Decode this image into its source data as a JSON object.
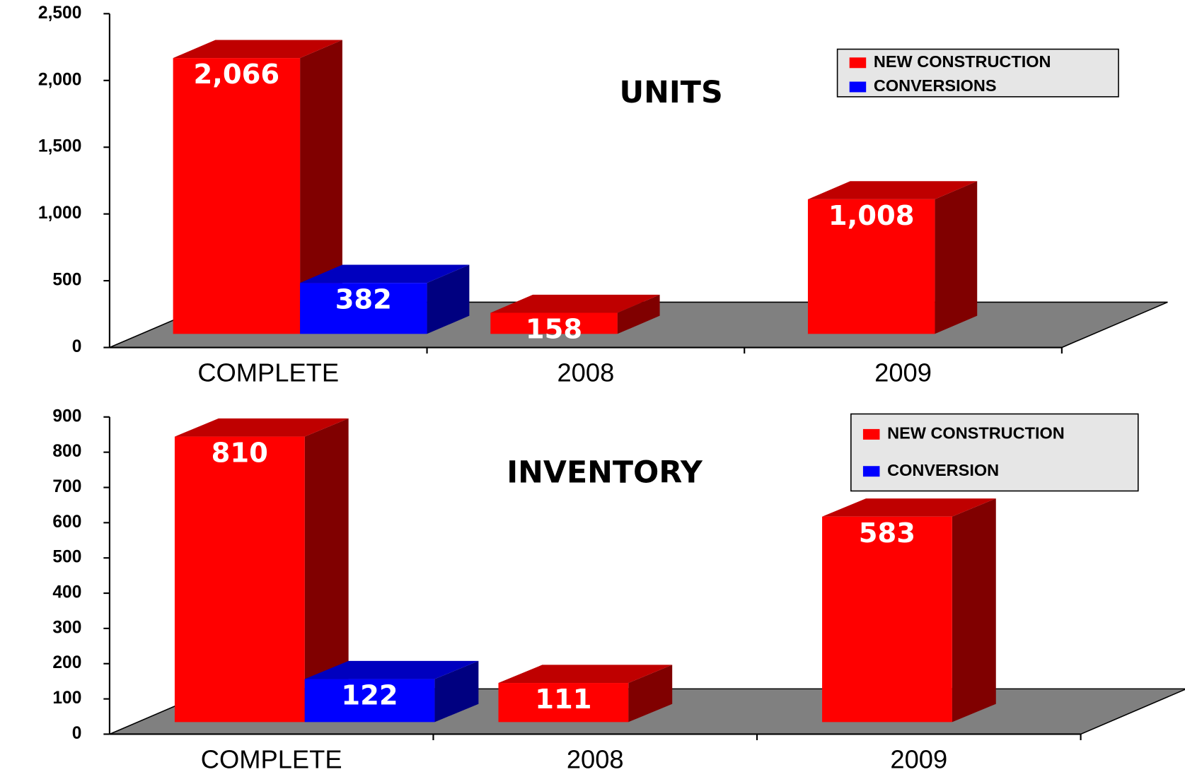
{
  "chart_data": [
    {
      "type": "bar3d",
      "title": "UNITS",
      "categories": [
        "COMPLETE",
        "2008",
        "2009"
      ],
      "series": [
        {
          "name": "NEW CONSTRUCTION",
          "color": "#ff0000",
          "values": [
            2066,
            158,
            1008
          ],
          "value_labels": [
            "2,066",
            "158",
            "1,008"
          ]
        },
        {
          "name": "CONVERSIONS",
          "color": "#0000ff",
          "values": [
            382,
            null,
            null
          ],
          "value_labels": [
            "382",
            null,
            null
          ]
        }
      ],
      "ylim": [
        0,
        2500
      ],
      "yticks": [
        0,
        500,
        {
          "value": 1000,
          "label": "1,000"
        },
        {
          "value": 1500,
          "label": "1,500"
        },
        {
          "value": 2000,
          "label": "2,000"
        },
        {
          "value": 2500,
          "label": "2,500"
        }
      ],
      "floor_color": "#808080",
      "legend": "upper right"
    },
    {
      "type": "bar3d",
      "title": "INVENTORY",
      "categories": [
        "COMPLETE",
        "2008",
        "2009"
      ],
      "series": [
        {
          "name": "NEW CONSTRUCTION",
          "color": "#ff0000",
          "values": [
            810,
            111,
            583
          ]
        },
        {
          "name": "CONVERSION",
          "color": "#0000ff",
          "values": [
            122,
            null,
            null
          ]
        }
      ],
      "ylim": [
        0,
        900
      ],
      "yticks": [
        0,
        100,
        200,
        300,
        400,
        500,
        600,
        700,
        800,
        900
      ],
      "floor_color": "#808080",
      "legend": "upper right"
    }
  ]
}
